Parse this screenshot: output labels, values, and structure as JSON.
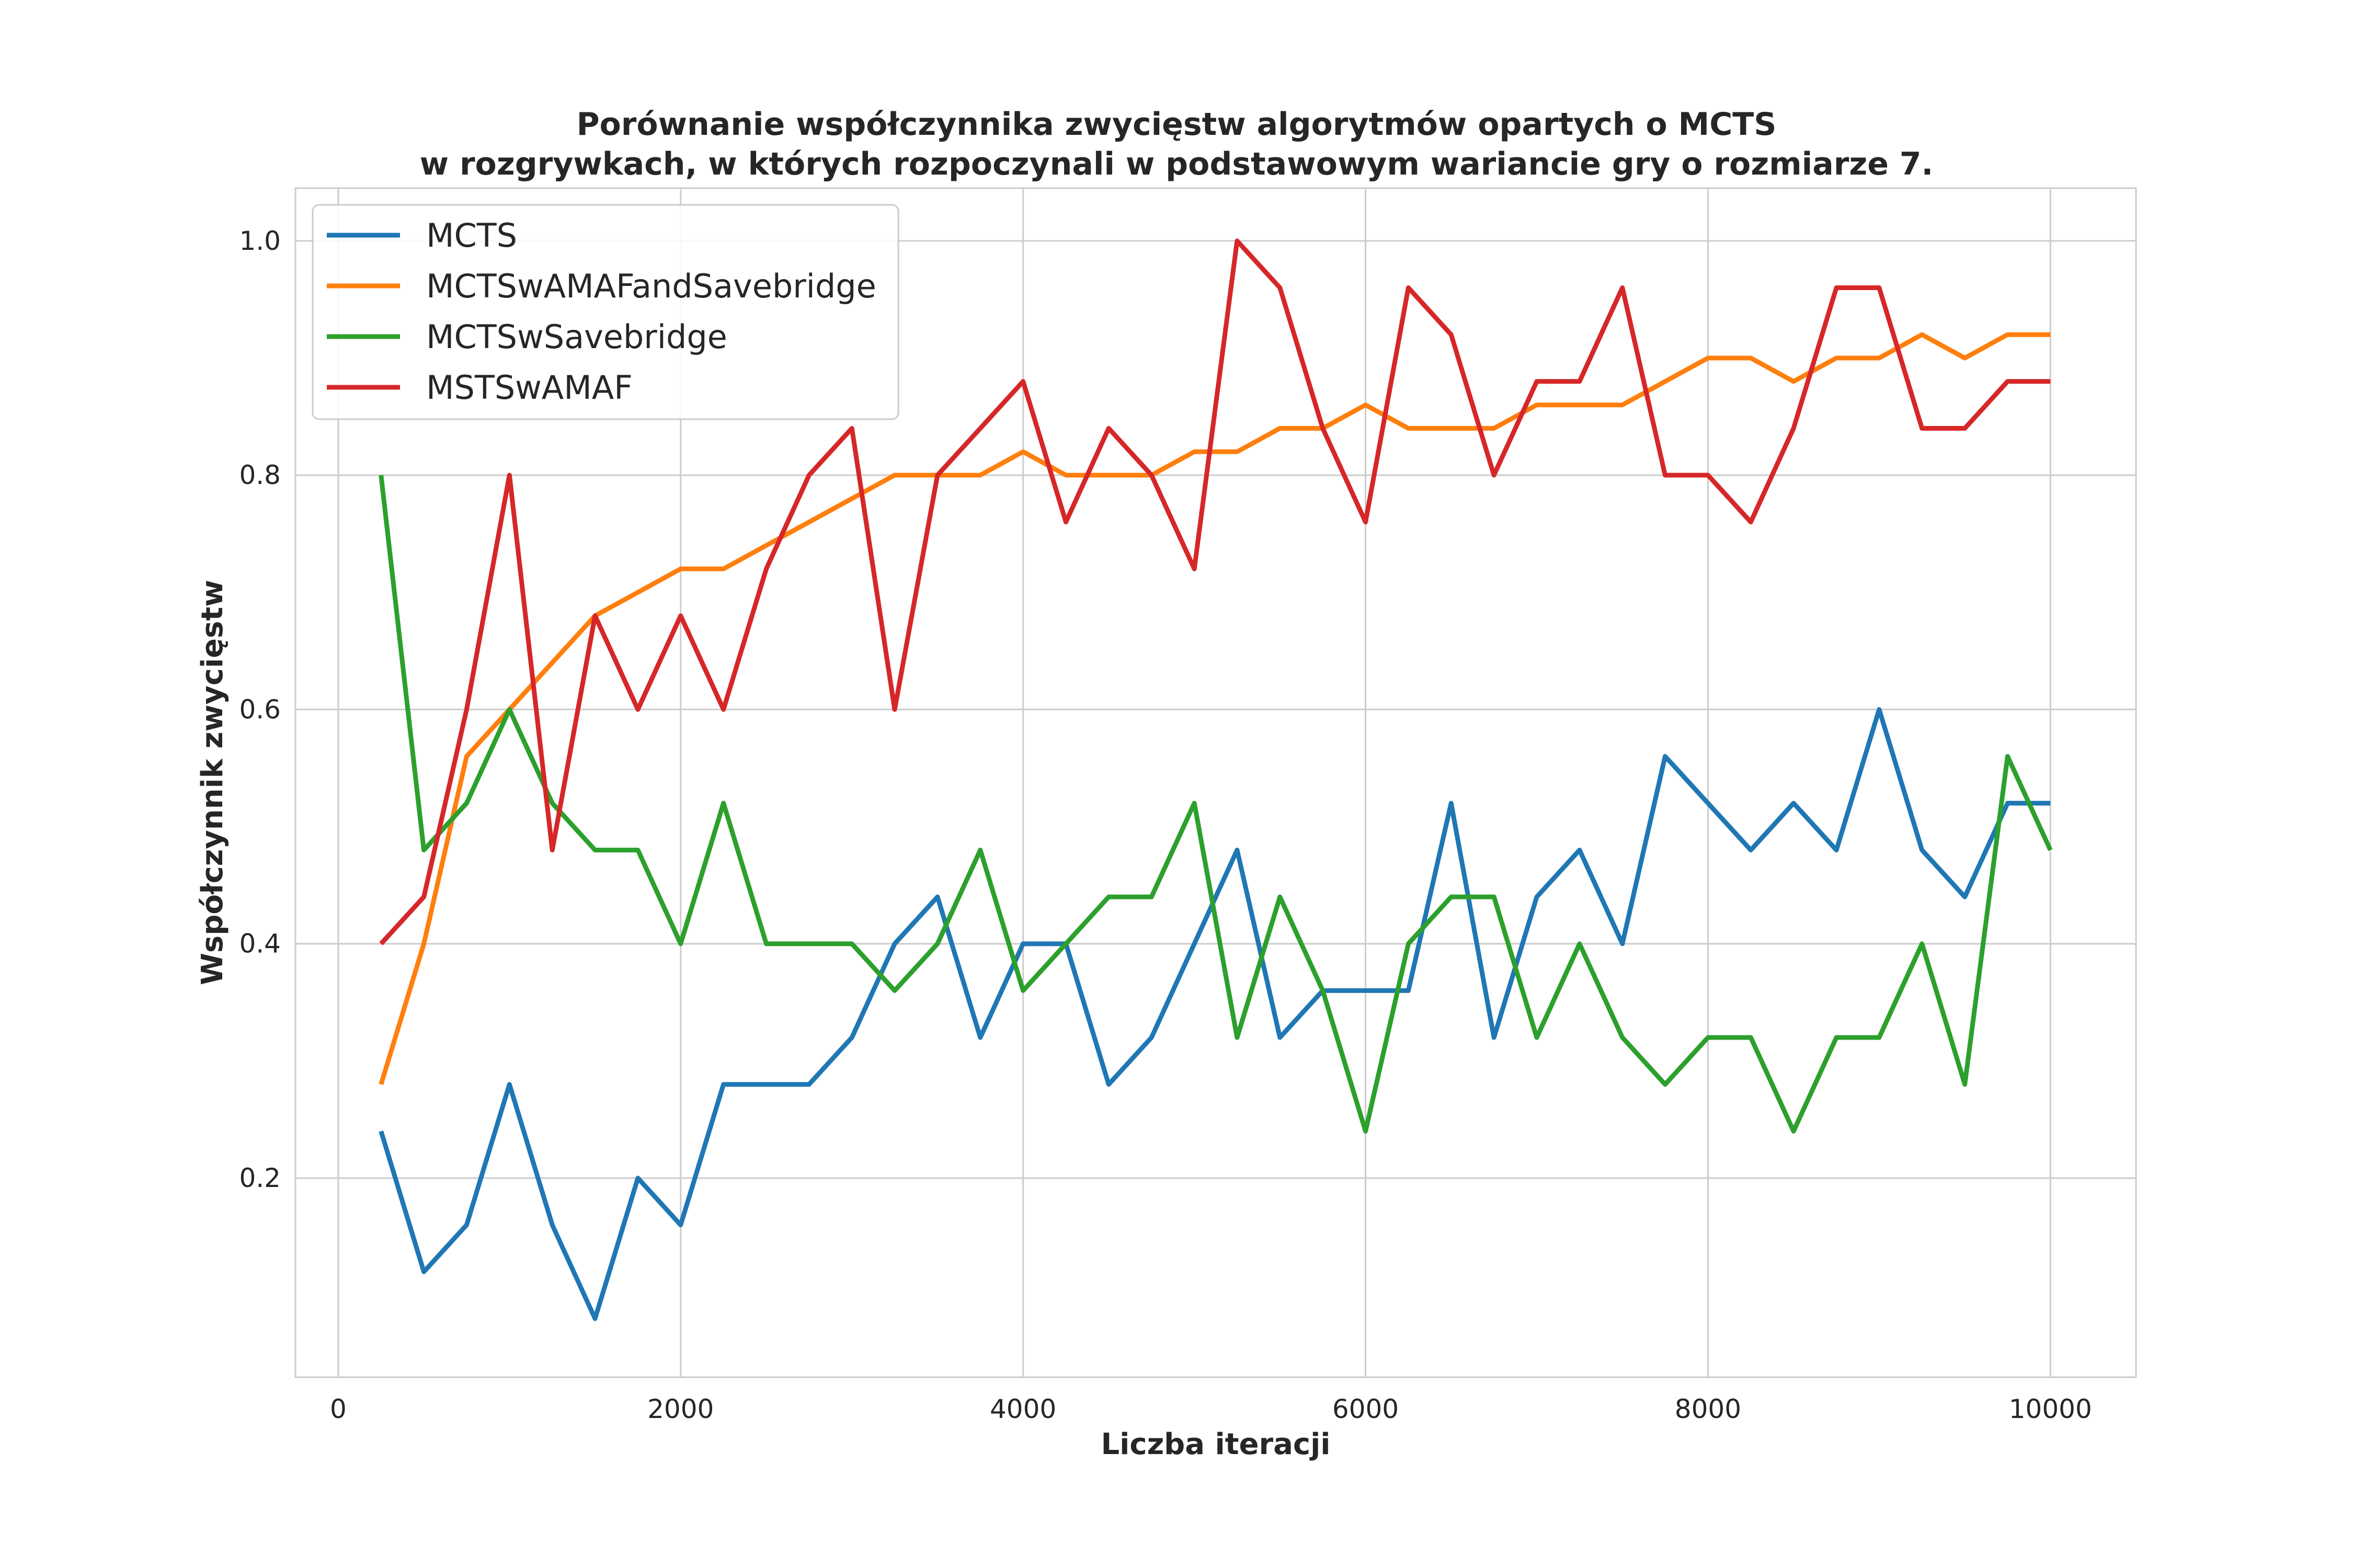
{
  "chart_data": {
    "type": "line",
    "title": "Porównanie współczynnika zwycięstw algorytmów opartych o MCTS",
    "subtitle": "w rozgrywkach, w których rozpoczynali w podstawowym wariancie gry o rozmiarze 7.",
    "xlabel": "Liczba iteracji",
    "ylabel": "Współczynnik zwycięstw",
    "xlim": [
      -250,
      10500
    ],
    "ylim": [
      0.03,
      1.045
    ],
    "x_ticks": [
      0,
      2000,
      4000,
      6000,
      8000,
      10000
    ],
    "x_tick_labels": [
      "0",
      "2000",
      "4000",
      "6000",
      "8000",
      "10000"
    ],
    "y_ticks": [
      0.2,
      0.4,
      0.6,
      0.8,
      1.0
    ],
    "y_tick_labels": [
      "0.2",
      "0.4",
      "0.6",
      "0.8",
      "1.0"
    ],
    "grid": true,
    "legend_position": "top-left",
    "x": [
      250,
      500,
      750,
      1000,
      1250,
      1500,
      1750,
      2000,
      2250,
      2500,
      2750,
      3000,
      3250,
      3500,
      3750,
      4000,
      4250,
      4500,
      4750,
      5000,
      5250,
      5500,
      5750,
      6000,
      6250,
      6500,
      6750,
      7000,
      7250,
      7500,
      7750,
      8000,
      8250,
      8500,
      8750,
      9000,
      9250,
      9500,
      9750,
      10000
    ],
    "series": [
      {
        "name": "MCTS",
        "color": "#1f77b4",
        "values": [
          0.24,
          0.12,
          0.16,
          0.28,
          0.16,
          0.08,
          0.2,
          0.16,
          0.28,
          0.28,
          0.28,
          0.32,
          0.4,
          0.44,
          0.32,
          0.4,
          0.4,
          0.28,
          0.32,
          0.4,
          0.48,
          0.32,
          0.36,
          0.36,
          0.36,
          0.52,
          0.32,
          0.44,
          0.48,
          0.4,
          0.56,
          0.52,
          0.48,
          0.52,
          0.48,
          0.6,
          0.48,
          0.44,
          0.52,
          0.52
        ]
      },
      {
        "name": "MCTSwAMAFandSavebridge",
        "color": "#ff7f0e",
        "values": [
          0.28,
          0.4,
          0.56,
          0.6,
          0.64,
          0.68,
          0.7,
          0.72,
          0.72,
          0.74,
          0.76,
          0.78,
          0.8,
          0.8,
          0.8,
          0.82,
          0.8,
          0.8,
          0.8,
          0.82,
          0.82,
          0.84,
          0.84,
          0.86,
          0.84,
          0.84,
          0.84,
          0.86,
          0.86,
          0.86,
          0.88,
          0.9,
          0.9,
          0.88,
          0.9,
          0.9,
          0.92,
          0.9,
          0.92,
          0.92
        ]
      },
      {
        "name": "MCTSwSavebridge",
        "color": "#2ca02c",
        "values": [
          0.8,
          0.48,
          0.52,
          0.6,
          0.52,
          0.48,
          0.48,
          0.4,
          0.52,
          0.4,
          0.4,
          0.4,
          0.36,
          0.4,
          0.48,
          0.36,
          0.4,
          0.44,
          0.44,
          0.52,
          0.32,
          0.44,
          0.36,
          0.24,
          0.4,
          0.44,
          0.44,
          0.32,
          0.4,
          0.32,
          0.28,
          0.32,
          0.32,
          0.24,
          0.32,
          0.32,
          0.4,
          0.28,
          0.56,
          0.48
        ]
      },
      {
        "name": "MSTSwAMAF",
        "color": "#d62728",
        "values": [
          0.4,
          0.44,
          0.6,
          0.8,
          0.48,
          0.68,
          0.6,
          0.68,
          0.6,
          0.72,
          0.8,
          0.84,
          0.6,
          0.8,
          0.84,
          0.88,
          0.76,
          0.84,
          0.8,
          0.72,
          1.0,
          0.96,
          0.84,
          0.76,
          0.96,
          0.92,
          0.8,
          0.88,
          0.88,
          0.96,
          0.8,
          0.8,
          0.76,
          0.84,
          0.96,
          0.96,
          0.84,
          0.84,
          0.88,
          0.88
        ]
      }
    ]
  }
}
